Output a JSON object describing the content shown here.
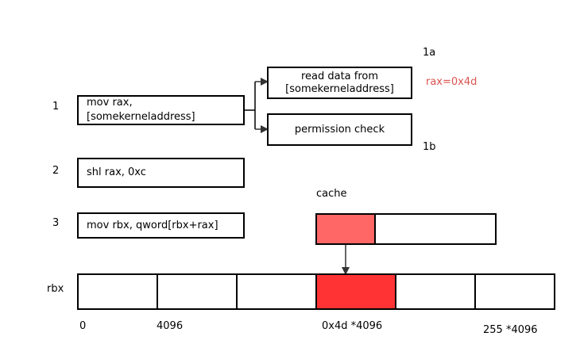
{
  "steps": [
    {
      "number": "1",
      "instruction": "mov rax, [somekerneladdress]"
    },
    {
      "number": "2",
      "instruction": "shl rax, 0xc"
    },
    {
      "number": "3",
      "instruction": "mov rbx, qword[rbx+rax]"
    }
  ],
  "branches": {
    "a": {
      "label": "1a",
      "text_line1": "read data from",
      "text_line2": "[somekerneladdress]",
      "annotation": "rax=0x4d"
    },
    "b": {
      "label": "1b",
      "text": "permission check"
    }
  },
  "cache": {
    "label": "cache"
  },
  "rbx": {
    "label": "rbx",
    "slot_count": 6,
    "highlighted_slot": 3,
    "offsets": [
      "0",
      "4096",
      "0x4d *4096",
      "255 *4096"
    ]
  },
  "colors": {
    "cache_highlight": "#ff6666",
    "rbx_highlight": "#ff3333",
    "annotation": "#d9534f",
    "arrow": "#333333"
  }
}
